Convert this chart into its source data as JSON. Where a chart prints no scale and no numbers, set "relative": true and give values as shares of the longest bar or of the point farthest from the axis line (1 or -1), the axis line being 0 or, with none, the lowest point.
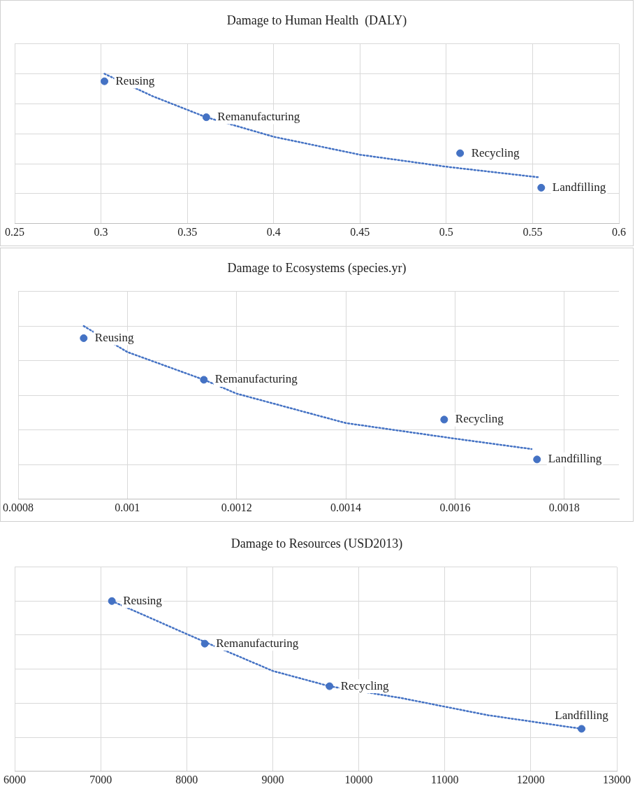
{
  "chart_data": [
    {
      "type": "scatter",
      "title": "Damage to Human Health  (DALY)",
      "xlim": [
        0.25,
        0.6
      ],
      "xticks": [
        0.25,
        0.3,
        0.35,
        0.4,
        0.45,
        0.5,
        0.55,
        0.6
      ],
      "relative": true,
      "grid": true,
      "legend": false,
      "series": [
        {
          "color": "#4472c4",
          "marker": "circle",
          "x": [
            0.302,
            0.361,
            0.508,
            0.555
          ],
          "values": [
            0.95,
            0.71,
            0.47,
            0.24
          ]
        },
        {
          "type": "line",
          "color": "#4472c4",
          "marker": "none",
          "line_style": "dotted",
          "x": [
            0.302,
            0.33,
            0.361,
            0.4,
            0.45,
            0.5,
            0.553
          ],
          "values": [
            1,
            0.85,
            0.71,
            0.58,
            0.46,
            0.38,
            0.31
          ]
        }
      ],
      "annotations": [
        {
          "text": "Reusing",
          "x": 0.302,
          "y": 0.95
        },
        {
          "text": "Remanufacturing",
          "x": 0.361,
          "y": 0.71
        },
        {
          "text": "Recycling",
          "x": 0.508,
          "y": 0.47
        },
        {
          "text": "Landfilling",
          "x": 0.555,
          "y": 0.24
        }
      ]
    },
    {
      "type": "scatter",
      "title": "Damage to Ecosystems (species.yr)",
      "xlim": [
        0.0008,
        0.0019
      ],
      "xticks": [
        0.0008,
        0.001,
        0.0012,
        0.0014,
        0.0016,
        0.0018
      ],
      "relative": true,
      "grid": true,
      "legend": false,
      "series": [
        {
          "color": "#4472c4",
          "marker": "circle",
          "x": [
            0.00092,
            0.00114,
            0.00158,
            0.00175
          ],
          "values": [
            0.93,
            0.69,
            0.46,
            0.23
          ]
        },
        {
          "type": "line",
          "color": "#4472c4",
          "marker": "none",
          "line_style": "dotted",
          "x": [
            0.00092,
            0.001,
            0.00114,
            0.0012,
            0.0014,
            0.0016,
            0.00174
          ],
          "values": [
            1,
            0.85,
            0.69,
            0.61,
            0.44,
            0.35,
            0.29
          ]
        }
      ],
      "annotations": [
        {
          "text": "Reusing",
          "x": 0.00092,
          "y": 0.93
        },
        {
          "text": "Remanufacturing",
          "x": 0.00114,
          "y": 0.69
        },
        {
          "text": "Recycling",
          "x": 0.00158,
          "y": 0.46
        },
        {
          "text": "Landfilling",
          "x": 0.00175,
          "y": 0.23
        }
      ]
    },
    {
      "type": "scatter",
      "title": "Damage to Resources (USD2013)",
      "xlim": [
        6000,
        13000
      ],
      "xticks": [
        6000,
        7000,
        8000,
        9000,
        10000,
        11000,
        12000,
        13000
      ],
      "relative": true,
      "grid": true,
      "legend": false,
      "series": [
        {
          "color": "#4472c4",
          "marker": "circle",
          "x": [
            7130,
            8210,
            9660,
            12590
          ],
          "values": [
            1,
            0.75,
            0.5,
            0.25
          ]
        },
        {
          "type": "line",
          "color": "#4472c4",
          "marker": "none",
          "line_style": "dotted",
          "x": [
            7130,
            8210,
            9000,
            9660,
            10500,
            11500,
            12590
          ],
          "values": [
            1,
            0.76,
            0.59,
            0.5,
            0.43,
            0.33,
            0.25
          ]
        }
      ],
      "annotations": [
        {
          "text": "Reusing",
          "x": 7130,
          "y": 1
        },
        {
          "text": "Remanufacturing",
          "x": 8210,
          "y": 0.75
        },
        {
          "text": "Recycling",
          "x": 9660,
          "y": 0.5
        },
        {
          "text": "Landfilling",
          "x": 12590,
          "y": 0.25
        }
      ]
    }
  ]
}
